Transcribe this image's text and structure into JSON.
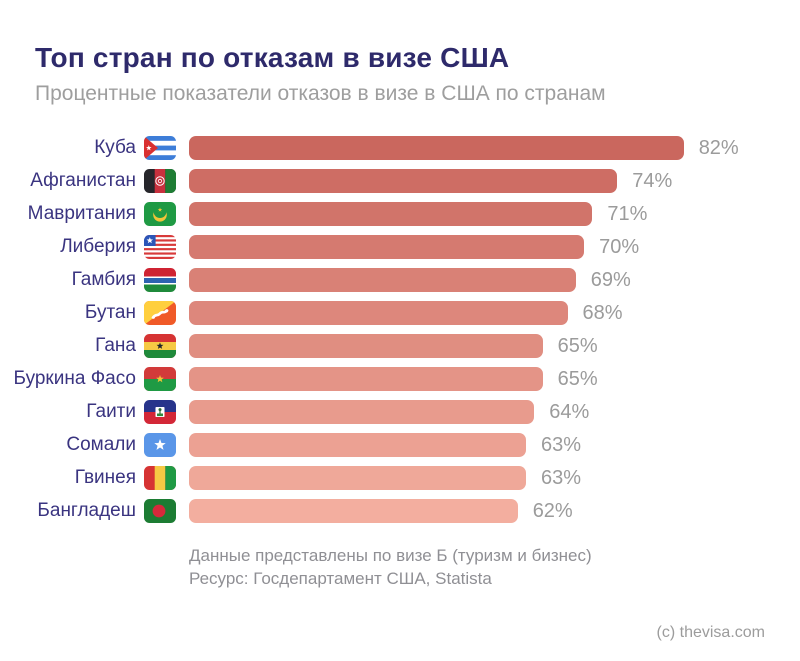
{
  "header": {
    "title": "Топ стран по отказам в визе США",
    "subtitle": "Процентные показатели отказов в визе в США по странам"
  },
  "chart_data": {
    "type": "bar",
    "orientation": "horizontal",
    "title": "Топ стран по отказам в визе США",
    "subtitle": "Процентные показатели отказов в визе в США по странам",
    "categories": [
      "Куба",
      "Афганистан",
      "Мавритания",
      "Либерия",
      "Гамбия",
      "Бутан",
      "Гана",
      "Буркина Фасо",
      "Гаити",
      "Сомали",
      "Гвинея",
      "Бангладеш"
    ],
    "values": [
      82,
      74,
      71,
      70,
      69,
      68,
      65,
      65,
      64,
      63,
      63,
      62
    ],
    "value_labels": [
      "82%",
      "74%",
      "71%",
      "70%",
      "69%",
      "68%",
      "65%",
      "65%",
      "64%",
      "63%",
      "63%",
      "62%"
    ],
    "flags": [
      "cuba",
      "afghanistan",
      "mauritania",
      "liberia",
      "gambia",
      "bhutan",
      "ghana",
      "burkina-faso",
      "haiti",
      "somalia",
      "guinea",
      "bangladesh"
    ],
    "xlim": [
      22.4,
      82
    ],
    "grid": false,
    "legend": false,
    "bar_color_top": "#ca675e",
    "bar_color_bottom": "#f3ae9f"
  },
  "notes": {
    "line1": "Данные представлены по визе Б (туризм и бизнес)",
    "line2": "Ресурс: Госдепартамент США, Statista"
  },
  "footer": {
    "copyright": "(c) thevisa.com"
  },
  "colors": {
    "background": "#ffffff",
    "title": "#2e2a6b",
    "subtitle": "#9e9e9e",
    "country_label": "#3a3480",
    "value_label": "#9b9b9b",
    "notes": "#8f8f94",
    "copyright": "#9c9c9c"
  }
}
